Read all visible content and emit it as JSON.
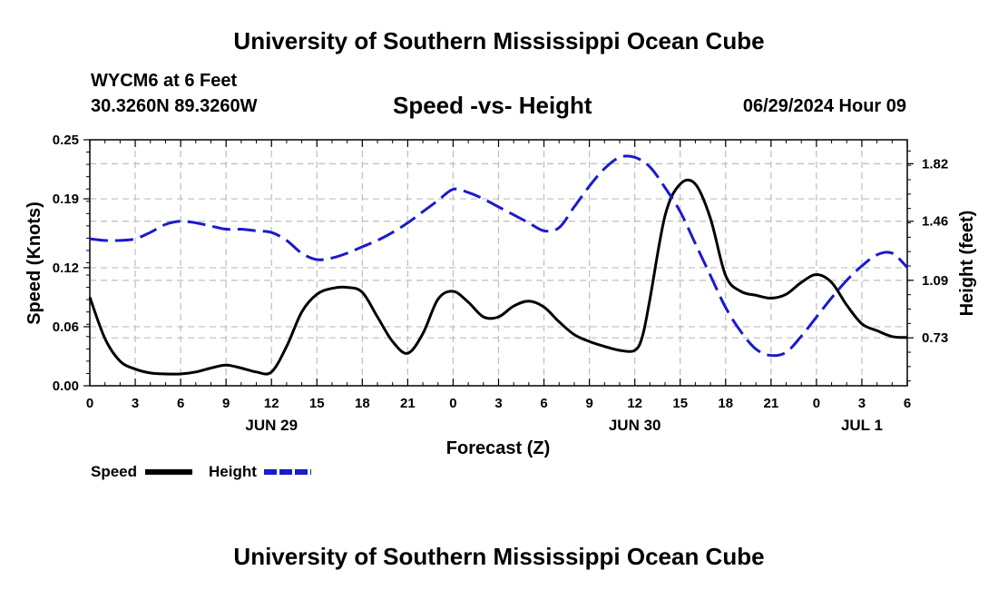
{
  "header": {
    "top_title": "University of Southern Mississippi Ocean Cube",
    "station": "WYCM6 at 6 Feet",
    "coordinates": "30.3260N  89.3260W",
    "run_time": "06/29/2024 Hour 09",
    "bottom_title": "University of Southern Mississippi Ocean Cube"
  },
  "chart_data": {
    "type": "line",
    "title": "Speed -vs- Height",
    "xlabel": "Forecast (Z)",
    "ylabel_left": "Speed (Knots)",
    "ylabel_right": "Height (feet)",
    "grid": true,
    "legend_position": "bottom-left",
    "x_unit": "hours from Jun 29 00Z",
    "xlim": [
      0,
      54
    ],
    "x_ticks": [
      0,
      3,
      6,
      9,
      12,
      15,
      18,
      21,
      24,
      27,
      30,
      33,
      36,
      39,
      42,
      45,
      48,
      51,
      54
    ],
    "x_tick_labels": [
      "0",
      "3",
      "6",
      "9",
      "12",
      "15",
      "18",
      "21",
      "0",
      "3",
      "6",
      "9",
      "12",
      "15",
      "18",
      "21",
      "0",
      "3",
      "6"
    ],
    "date_labels": [
      {
        "x": 12,
        "label": "JUN 29"
      },
      {
        "x": 36,
        "label": "JUN 30"
      },
      {
        "x": 51,
        "label": "JUL 1"
      }
    ],
    "y_left": {
      "lim": [
        0,
        0.25
      ],
      "ticks": [
        0.0,
        0.06,
        0.12,
        0.19,
        0.25
      ],
      "tick_labels": [
        "0.00",
        "0.06",
        "0.12",
        "0.19",
        "0.25"
      ]
    },
    "y_right": {
      "lim": [
        0.43,
        1.97
      ],
      "ticks": [
        0.73,
        1.09,
        1.46,
        1.82
      ],
      "tick_labels": [
        "0.73",
        "1.09",
        "1.46",
        "1.82"
      ]
    },
    "series": [
      {
        "name": "Speed",
        "axis": "left",
        "color": "#000000",
        "dash": "solid",
        "x": [
          0,
          1,
          2,
          3,
          4,
          5,
          6,
          7,
          8,
          9,
          10,
          11,
          12,
          13,
          14,
          15,
          16,
          17,
          18,
          19,
          20,
          21,
          22,
          23,
          24,
          25,
          26,
          27,
          28,
          29,
          30,
          31,
          32,
          33,
          34,
          35,
          36,
          36.5,
          37,
          38,
          39,
          40,
          41,
          42,
          43,
          44,
          45,
          46,
          47,
          48,
          49,
          50,
          51,
          52,
          53,
          54
        ],
        "values": [
          0.09,
          0.048,
          0.025,
          0.017,
          0.013,
          0.012,
          0.012,
          0.014,
          0.018,
          0.021,
          0.018,
          0.014,
          0.014,
          0.04,
          0.075,
          0.093,
          0.099,
          0.1,
          0.095,
          0.07,
          0.045,
          0.033,
          0.053,
          0.088,
          0.096,
          0.085,
          0.07,
          0.07,
          0.081,
          0.086,
          0.08,
          0.065,
          0.052,
          0.045,
          0.04,
          0.036,
          0.036,
          0.05,
          0.088,
          0.173,
          0.205,
          0.205,
          0.17,
          0.112,
          0.096,
          0.092,
          0.089,
          0.093,
          0.105,
          0.113,
          0.105,
          0.082,
          0.063,
          0.056,
          0.05,
          0.049
        ]
      },
      {
        "name": "Height",
        "axis": "right",
        "color": "#1a1acc",
        "dash": "dashed",
        "x": [
          0,
          1,
          2,
          3,
          4,
          5,
          6,
          7,
          8,
          9,
          10,
          11,
          12,
          13,
          14,
          15,
          16,
          17,
          18,
          19,
          20,
          21,
          22,
          23,
          24,
          25,
          26,
          27,
          28,
          29,
          30,
          31,
          32,
          33,
          34,
          35,
          36,
          37,
          38,
          39,
          40,
          41,
          42,
          43,
          44,
          45,
          46,
          47,
          48,
          49,
          50,
          51,
          52,
          53,
          54
        ],
        "values": [
          1.35,
          1.34,
          1.34,
          1.35,
          1.39,
          1.44,
          1.46,
          1.45,
          1.43,
          1.41,
          1.41,
          1.4,
          1.39,
          1.34,
          1.26,
          1.22,
          1.23,
          1.26,
          1.3,
          1.34,
          1.39,
          1.45,
          1.52,
          1.59,
          1.66,
          1.64,
          1.6,
          1.55,
          1.5,
          1.45,
          1.4,
          1.42,
          1.55,
          1.68,
          1.79,
          1.86,
          1.86,
          1.8,
          1.67,
          1.52,
          1.32,
          1.12,
          0.92,
          0.77,
          0.66,
          0.62,
          0.64,
          0.74,
          0.86,
          0.98,
          1.09,
          1.18,
          1.25,
          1.26,
          1.17
        ]
      }
    ]
  }
}
